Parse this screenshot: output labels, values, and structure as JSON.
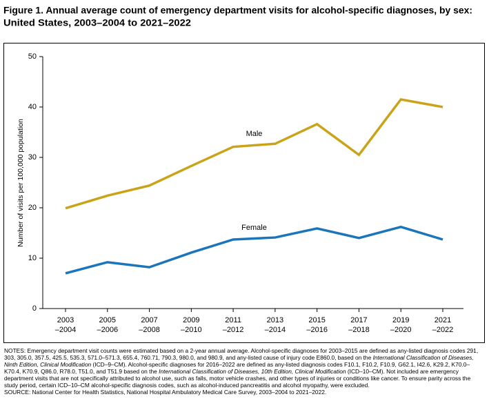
{
  "chart_data": {
    "type": "line",
    "title_lines": [
      "Figure 1. Annual average count of emergency department visits for alcohol-specific diagnoses, by sex:",
      "United States, 2003–2004 to 2021–2022"
    ],
    "y_label": "Number of visits per 100,000 population",
    "categories": [
      [
        "2003",
        "–2004"
      ],
      [
        "2005",
        "–2006"
      ],
      [
        "2007",
        "–2008"
      ],
      [
        "2009",
        "–2010"
      ],
      [
        "2011",
        "–2012"
      ],
      [
        "2013",
        "–2014"
      ],
      [
        "2015",
        "–2016"
      ],
      [
        "2017",
        "–2018"
      ],
      [
        "2019",
        "–2020"
      ],
      [
        "2021",
        "–2022"
      ]
    ],
    "series": [
      {
        "name": "Male",
        "color": "#c9a418",
        "values": [
          19.9,
          22.4,
          24.4,
          28.3,
          32.1,
          32.7,
          36.6,
          30.5,
          41.5,
          40.0
        ]
      },
      {
        "name": "Female",
        "color": "#1b75bb",
        "values": [
          7.0,
          9.2,
          8.2,
          11.1,
          13.7,
          14.1,
          15.9,
          14.0,
          16.2,
          13.7
        ]
      }
    ],
    "ylim": [
      0,
      50
    ],
    "yticks": [
      0,
      10,
      20,
      30,
      40,
      50
    ],
    "grid": false
  },
  "notes": [
    "NOTES: Emergency department visit counts were estimated based on a 2-year annual average. Alcohol-specific diagnoses for 2003–2015 are defined as any-listed diagnosis codes 291, 303, 305.0, 357.5, 425.5, 535.3, 571.0–571.3, 655.4, 760.71, 790.3, 980.0, and 980.9, and any-listed cause of injury code E860.0, based on the ",
    "International Classification of Diseases, Ninth Edition, Clinical Modification",
    " (ICD–9–CM). Alcohol-specific diagnoses for 2016–2022 are defined as any-listed diagnosis codes F10.1, F10.2, F10.9, G62.1, I42.6, K29.2, K70.0–K70.4, K70.9, Q86.0, R78.0, T51.0, and T51.9 based on the ",
    "International Classification of Diseases, 10th Edition, Clinical Modification",
    " (ICD–10–CM). Not included are emergency department visits that are not specifically attributed to alcohol use, such as falls, motor vehicle crashes, and other types of injuries or conditions like cancer. To ensure parity across the study period, certain ICD–10–CM alcohol-specific diagnosis codes, such as alcohol-induced pancreatitis and alcohol myopathy, were excluded."
  ],
  "source": "SOURCE: National Center for Health Statistics, National Hospital Ambulatory Medical Care Survey, 2003–2004 to 2021–2022."
}
